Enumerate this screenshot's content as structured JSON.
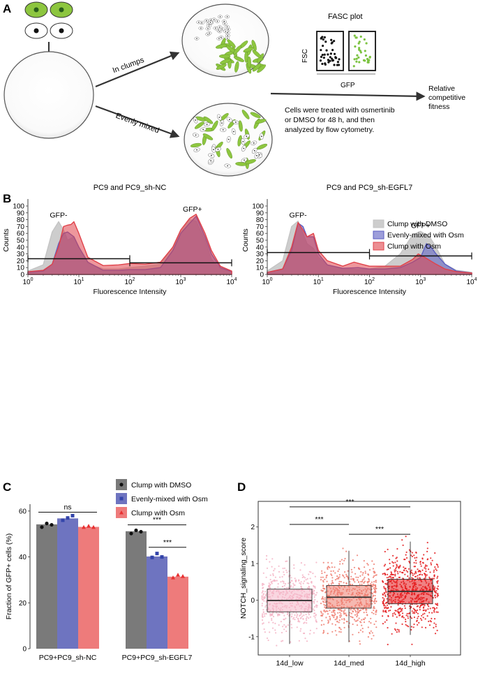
{
  "panel_labels": {
    "a": "A",
    "b": "B",
    "c": "C",
    "d": "D"
  },
  "panel_a": {
    "label_clumps": "In clumps",
    "label_mixed": "Evenly mixed",
    "fasc_title": "FASC plot",
    "fasc_ylabel": "FSC",
    "fasc_xlabel": "GFP",
    "description_lines": [
      "Cells were treated with osmertinib",
      "or DMSO for 48 h, and then",
      "analyzed by flow cytometry."
    ],
    "result_lines": [
      "Relative",
      "competitive",
      "fitness"
    ]
  },
  "chart_data": [
    {
      "type": "area",
      "panel": "B-left",
      "title": "PC9 and PC9_sh-NC",
      "xlabel": "Fluorescence Intensity",
      "ylabel": "Counts",
      "xscale": "log",
      "xlim": [
        1,
        10000
      ],
      "ylim": [
        0,
        100
      ],
      "yticks": [
        "0",
        "10",
        "20",
        "30",
        "40",
        "50",
        "60",
        "70",
        "80",
        "90",
        "100"
      ],
      "xticks": [
        {
          "base": "10",
          "exp": "0"
        },
        {
          "base": "10",
          "exp": "1"
        },
        {
          "base": "10",
          "exp": "2"
        },
        {
          "base": "10",
          "exp": "3"
        },
        {
          "base": "10",
          "exp": "4"
        }
      ],
      "annotations": [
        "GFP-",
        "GFP+"
      ],
      "series": [
        {
          "name": "Clump with DMSO",
          "color": "#c4c4c4",
          "points": [
            [
              1,
              5
            ],
            [
              2,
              14
            ],
            [
              3,
              62
            ],
            [
              4,
              77
            ],
            [
              5,
              65
            ],
            [
              6,
              50
            ],
            [
              8,
              55
            ],
            [
              10,
              40
            ],
            [
              15,
              16
            ],
            [
              30,
              8
            ],
            [
              60,
              8
            ],
            [
              100,
              10
            ],
            [
              200,
              12
            ],
            [
              400,
              15
            ],
            [
              700,
              40
            ],
            [
              1000,
              62
            ],
            [
              1500,
              80
            ],
            [
              2000,
              78
            ],
            [
              3000,
              50
            ],
            [
              4000,
              22
            ],
            [
              6000,
              8
            ],
            [
              10000,
              5
            ]
          ]
        },
        {
          "name": "Evenly-mixed with Osm",
          "color": "#5b5ec2",
          "points": [
            [
              1,
              3
            ],
            [
              2,
              5
            ],
            [
              3,
              15
            ],
            [
              4,
              45
            ],
            [
              5,
              60
            ],
            [
              6,
              62
            ],
            [
              8,
              55
            ],
            [
              10,
              40
            ],
            [
              15,
              18
            ],
            [
              30,
              6
            ],
            [
              60,
              6
            ],
            [
              100,
              7
            ],
            [
              200,
              7
            ],
            [
              400,
              10
            ],
            [
              700,
              35
            ],
            [
              1000,
              60
            ],
            [
              1500,
              75
            ],
            [
              2000,
              85
            ],
            [
              3000,
              55
            ],
            [
              4000,
              30
            ],
            [
              6000,
              10
            ],
            [
              10000,
              4
            ]
          ]
        },
        {
          "name": "Clump with Osm",
          "color": "#e0424a",
          "points": [
            [
              1,
              4
            ],
            [
              2,
              6
            ],
            [
              3,
              15
            ],
            [
              4,
              40
            ],
            [
              5,
              70
            ],
            [
              6,
              72
            ],
            [
              7,
              73
            ],
            [
              8,
              77
            ],
            [
              10,
              60
            ],
            [
              15,
              25
            ],
            [
              30,
              13
            ],
            [
              60,
              14
            ],
            [
              100,
              16
            ],
            [
              200,
              15
            ],
            [
              400,
              18
            ],
            [
              700,
              40
            ],
            [
              1000,
              65
            ],
            [
              1500,
              82
            ],
            [
              2000,
              88
            ],
            [
              3000,
              60
            ],
            [
              4000,
              35
            ],
            [
              6000,
              12
            ],
            [
              10000,
              5
            ]
          ]
        }
      ],
      "gates": [
        {
          "from": 1,
          "to": 100,
          "y": 23
        },
        {
          "from": 100,
          "to": 10000,
          "y": 17
        }
      ]
    },
    {
      "type": "area",
      "panel": "B-right",
      "title": "PC9 and PC9_sh-EGFL7",
      "xlabel": "Fluorescence Intensity",
      "ylabel": "Counts",
      "xscale": "log",
      "xlim": [
        1,
        10000
      ],
      "ylim": [
        0,
        100
      ],
      "yticks": [
        "0",
        "10",
        "20",
        "30",
        "40",
        "50",
        "60",
        "70",
        "80",
        "90",
        "100"
      ],
      "xticks": [
        {
          "base": "10",
          "exp": "0"
        },
        {
          "base": "10",
          "exp": "1"
        },
        {
          "base": "10",
          "exp": "2"
        },
        {
          "base": "10",
          "exp": "3"
        },
        {
          "base": "10",
          "exp": "4"
        }
      ],
      "annotations": [
        "GFP-",
        "GFP+"
      ],
      "series": [
        {
          "name": "Clump with DMSO",
          "color": "#c4c4c4",
          "points": [
            [
              1,
              5
            ],
            [
              2,
              20
            ],
            [
              3,
              70
            ],
            [
              4,
              78
            ],
            [
              5,
              60
            ],
            [
              6,
              45
            ],
            [
              8,
              38
            ],
            [
              10,
              25
            ],
            [
              15,
              14
            ],
            [
              30,
              8
            ],
            [
              60,
              7
            ],
            [
              100,
              8
            ],
            [
              200,
              12
            ],
            [
              400,
              30
            ],
            [
              700,
              58
            ],
            [
              1000,
              63
            ],
            [
              1500,
              55
            ],
            [
              2000,
              40
            ],
            [
              3000,
              15
            ],
            [
              5000,
              6
            ],
            [
              10000,
              3
            ]
          ]
        },
        {
          "name": "Evenly-mixed with Osm",
          "color": "#5b5ec2",
          "points": [
            [
              1,
              3
            ],
            [
              2,
              8
            ],
            [
              3,
              35
            ],
            [
              4,
              75
            ],
            [
              5,
              70
            ],
            [
              6,
              55
            ],
            [
              8,
              55
            ],
            [
              10,
              30
            ],
            [
              15,
              14
            ],
            [
              30,
              9
            ],
            [
              60,
              10
            ],
            [
              100,
              8
            ],
            [
              200,
              8
            ],
            [
              400,
              10
            ],
            [
              700,
              18
            ],
            [
              1000,
              25
            ],
            [
              1300,
              45
            ],
            [
              1600,
              40
            ],
            [
              2000,
              30
            ],
            [
              3000,
              15
            ],
            [
              5000,
              5
            ],
            [
              10000,
              2
            ]
          ]
        },
        {
          "name": "Clump with Osm",
          "color": "#e0424a",
          "points": [
            [
              1,
              3
            ],
            [
              2,
              8
            ],
            [
              3,
              40
            ],
            [
              4,
              76
            ],
            [
              5,
              65
            ],
            [
              6,
              55
            ],
            [
              8,
              60
            ],
            [
              10,
              35
            ],
            [
              15,
              20
            ],
            [
              30,
              12
            ],
            [
              50,
              18
            ],
            [
              70,
              15
            ],
            [
              100,
              12
            ],
            [
              200,
              12
            ],
            [
              400,
              12
            ],
            [
              700,
              22
            ],
            [
              900,
              30
            ],
            [
              1200,
              25
            ],
            [
              2000,
              15
            ],
            [
              3000,
              8
            ],
            [
              5000,
              4
            ],
            [
              10000,
              2
            ]
          ]
        }
      ],
      "gates": [
        {
          "from": 1,
          "to": 100,
          "y": 32
        },
        {
          "from": 100,
          "to": 10000,
          "y": 27
        }
      ]
    },
    {
      "type": "bar",
      "panel": "C",
      "ylabel": "Fraction of GFP+ cells (%)",
      "ylim": [
        0,
        63
      ],
      "yticks": [
        "0",
        "20",
        "40",
        "60"
      ],
      "categories": [
        "PC9+PC9_sh-NC",
        "PC9+PC9_sh-EGFL7"
      ],
      "series": [
        {
          "name": "Clump with DMSO",
          "color": "#7a7a7a",
          "values": [
            54.2,
            51.2
          ],
          "points": [
            [
              53.0,
              54.6,
              54.0
            ],
            [
              50.2,
              51.6,
              51.0
            ]
          ]
        },
        {
          "name": "Evenly-mixed with Osm",
          "color": "#6e74c0",
          "values": [
            56.8,
            40.2
          ],
          "points": [
            [
              56.0,
              57.0,
              58.0
            ],
            [
              39.8,
              41.5,
              40.0
            ]
          ]
        },
        {
          "name": "Clump with Osm",
          "color": "#ee7b7b",
          "values": [
            53.1,
            31.4
          ],
          "points": [
            [
              53.0,
              53.5,
              53.0
            ],
            [
              31.0,
              32.2,
              31.6
            ]
          ]
        }
      ],
      "significance": [
        {
          "label": "ns",
          "from": "0-0",
          "to": "0-2"
        },
        {
          "label": "***",
          "from": "1-0",
          "to": "1-2"
        },
        {
          "label": "***",
          "from": "1-1",
          "to": "1-2"
        }
      ]
    },
    {
      "type": "box",
      "panel": "D",
      "ylabel": "NOTCH_signaling_score",
      "ylim": [
        -1.5,
        2.7
      ],
      "yticks": [
        "-1",
        "0",
        "1",
        "2"
      ],
      "categories": [
        "14d_low",
        "14d_med",
        "14d_high"
      ],
      "colors": [
        "#f4b4c6",
        "#ef7d70",
        "#e41a1c"
      ],
      "boxes": [
        {
          "q1": -0.32,
          "median": -0.01,
          "q3": 0.3,
          "whisker_low": -1.2,
          "whisker_high": 1.2
        },
        {
          "q1": -0.22,
          "median": 0.08,
          "q3": 0.4,
          "whisker_low": -1.15,
          "whisker_high": 1.35
        },
        {
          "q1": -0.1,
          "median": 0.24,
          "q3": 0.57,
          "whisker_low": -0.95,
          "whisker_high": 1.6
        }
      ],
      "data_range": [
        [
          -1.38,
          1.25
        ],
        [
          -1.45,
          1.45
        ],
        [
          -1.55,
          2.2
        ]
      ],
      "significance": [
        {
          "label": "***",
          "from": 0,
          "to": 2
        },
        {
          "label": "***",
          "from": 0,
          "to": 1
        },
        {
          "label": "***",
          "from": 1,
          "to": 2
        }
      ]
    }
  ]
}
